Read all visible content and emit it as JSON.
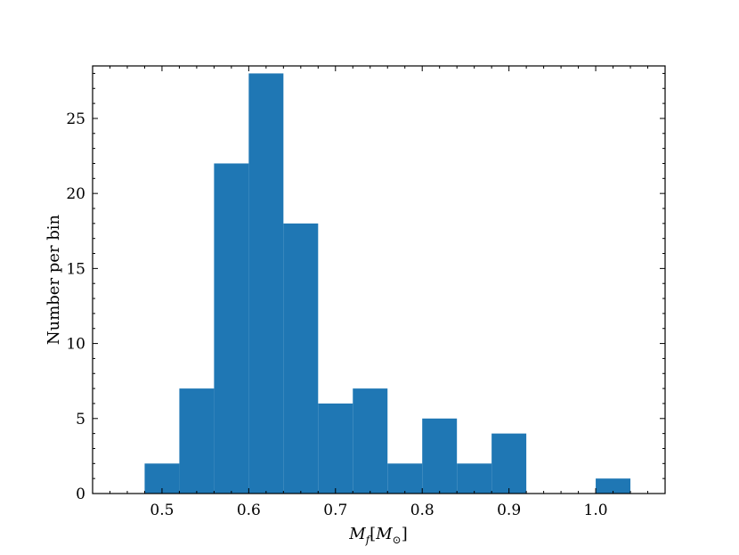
{
  "chart_data": {
    "type": "bar",
    "title": "",
    "xlabel": "M_f[M_⊙]",
    "ylabel": "Number per bin",
    "bar_color": "#1f77b4",
    "xlim": [
      0.42,
      1.08
    ],
    "ylim": [
      0,
      28.5
    ],
    "bin_width": 0.04,
    "bins": [
      {
        "start": 0.48,
        "end": 0.52,
        "value": 2
      },
      {
        "start": 0.52,
        "end": 0.56,
        "value": 7
      },
      {
        "start": 0.56,
        "end": 0.6,
        "value": 22
      },
      {
        "start": 0.6,
        "end": 0.64,
        "value": 28
      },
      {
        "start": 0.64,
        "end": 0.68,
        "value": 18
      },
      {
        "start": 0.68,
        "end": 0.72,
        "value": 6
      },
      {
        "start": 0.72,
        "end": 0.76,
        "value": 7
      },
      {
        "start": 0.76,
        "end": 0.8,
        "value": 2
      },
      {
        "start": 0.8,
        "end": 0.84,
        "value": 5
      },
      {
        "start": 0.84,
        "end": 0.88,
        "value": 2
      },
      {
        "start": 0.88,
        "end": 0.92,
        "value": 4
      },
      {
        "start": 1.0,
        "end": 1.04,
        "value": 1
      }
    ],
    "x_ticks": [
      "0.5",
      "0.6",
      "0.7",
      "0.8",
      "0.9",
      "1.0"
    ],
    "y_ticks": [
      "0",
      "5",
      "10",
      "15",
      "20",
      "25"
    ],
    "grid": false,
    "legend": "none"
  }
}
